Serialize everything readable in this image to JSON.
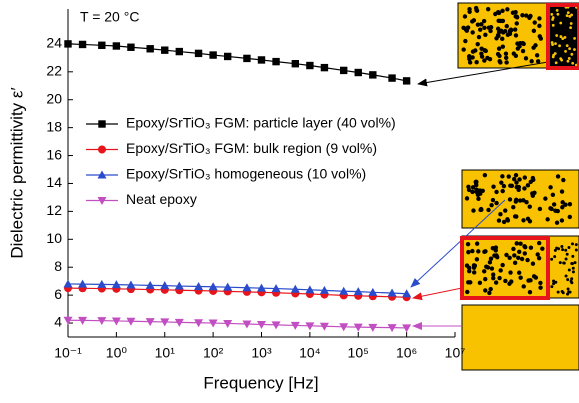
{
  "chart_data": {
    "type": "line",
    "annotation": "T = 20 °C",
    "x_label": "Frequency [Hz]",
    "y_label": "Dielectric permittivity ε′",
    "log_x": true,
    "xlim": [
      0.1,
      10000000
    ],
    "ylim": [
      3,
      26.5
    ],
    "xticks": [
      {
        "value": 0.1,
        "label": "10⁻¹"
      },
      {
        "value": 1,
        "label": "10⁰"
      },
      {
        "value": 10,
        "label": "10¹"
      },
      {
        "value": 100,
        "label": "10²"
      },
      {
        "value": 1000,
        "label": "10³"
      },
      {
        "value": 10000,
        "label": "10⁴"
      },
      {
        "value": 100000,
        "label": "10⁵"
      },
      {
        "value": 1000000,
        "label": "10⁶"
      },
      {
        "value": 10000000,
        "label": "10⁷"
      }
    ],
    "yticks": [
      4,
      6,
      8,
      10,
      12,
      14,
      16,
      18,
      20,
      22,
      24
    ],
    "x": [
      0.1,
      0.2,
      0.5,
      1,
      2,
      5,
      10,
      20,
      50,
      100,
      200,
      500,
      1000,
      2000,
      5000,
      10000,
      20000,
      50000,
      100000,
      200000,
      500000,
      1000000
    ],
    "series": [
      {
        "name": "Epoxy/SrTiO₃ FGM: particle layer (40 vol%)",
        "color": "#000000",
        "marker": "square",
        "values": [
          24.0,
          23.96,
          23.9,
          23.85,
          23.76,
          23.65,
          23.55,
          23.45,
          23.32,
          23.2,
          23.1,
          22.96,
          22.85,
          22.73,
          22.58,
          22.45,
          22.3,
          22.1,
          21.95,
          21.78,
          21.55,
          21.35
        ]
      },
      {
        "name": "Epoxy/SrTiO₃ FGM: bulk region (9 vol%)",
        "color": "#e8141c",
        "marker": "circle",
        "values": [
          6.5,
          6.49,
          6.47,
          6.45,
          6.43,
          6.4,
          6.38,
          6.35,
          6.32,
          6.3,
          6.27,
          6.23,
          6.2,
          6.17,
          6.12,
          6.08,
          6.04,
          5.98,
          5.95,
          5.92,
          5.88,
          5.85
        ]
      },
      {
        "name": "Epoxy/SrTiO₃ homogeneous (10 vol%)",
        "color": "#2a4ccc",
        "marker": "triangle-up",
        "values": [
          6.8,
          6.79,
          6.77,
          6.75,
          6.73,
          6.7,
          6.68,
          6.65,
          6.62,
          6.6,
          6.57,
          6.53,
          6.5,
          6.47,
          6.42,
          6.38,
          6.34,
          6.28,
          6.25,
          6.2,
          6.15,
          6.1
        ]
      },
      {
        "name": "Neat epoxy",
        "color": "#c24fc2",
        "marker": "triangle-down",
        "values": [
          4.2,
          4.19,
          4.17,
          4.15,
          4.13,
          4.1,
          4.08,
          4.05,
          4.02,
          4.0,
          3.97,
          3.93,
          3.9,
          3.87,
          3.83,
          3.8,
          3.77,
          3.73,
          3.71,
          3.69,
          3.67,
          3.65
        ]
      }
    ]
  }
}
